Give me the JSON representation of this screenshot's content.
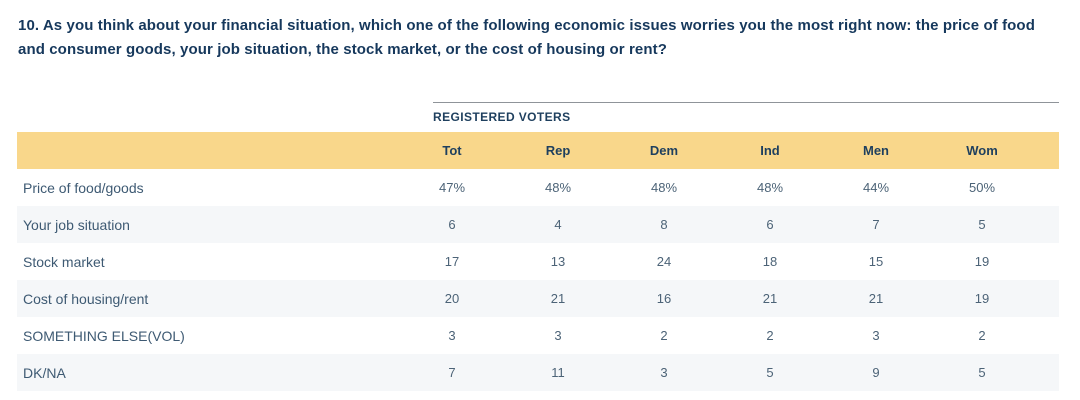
{
  "question": {
    "text": "10. As you think about your financial situation, which one of the following economic issues worries you the most right now: the price of food and consumer goods, your job situation, the stock market, or the cost of housing or rent?"
  },
  "table": {
    "group_label": "REGISTERED VOTERS",
    "columns": [
      "Tot",
      "Rep",
      "Dem",
      "Ind",
      "Men",
      "Wom"
    ],
    "rows": [
      {
        "label": "Price of food/goods",
        "values": [
          "47%",
          "48%",
          "48%",
          "48%",
          "44%",
          "50%"
        ]
      },
      {
        "label": "Your job situation",
        "values": [
          "6",
          "4",
          "8",
          "6",
          "7",
          "5"
        ]
      },
      {
        "label": "Stock market",
        "values": [
          "17",
          "13",
          "24",
          "18",
          "15",
          "19"
        ]
      },
      {
        "label": "Cost of housing/rent",
        "values": [
          "20",
          "21",
          "16",
          "21",
          "21",
          "19"
        ]
      },
      {
        "label": "SOMETHING ELSE(VOL)",
        "values": [
          "3",
          "3",
          "2",
          "2",
          "3",
          "2"
        ]
      },
      {
        "label": "DK/NA",
        "values": [
          "7",
          "11",
          "3",
          "5",
          "9",
          "5"
        ]
      }
    ]
  },
  "colors": {
    "header_band": "#F9D78B",
    "row_stripe": "#F5F7F9",
    "question_text": "#16385C",
    "header_text": "#1E3F5E",
    "row_label_text": "#3E5A73",
    "cell_text": "#4C6377",
    "rule_line": "#8F9499",
    "background": "#FFFFFF"
  },
  "chart_data": {
    "type": "table",
    "title": "10. As you think about your financial situation, which one of the following economic issues worries you the most right now: the price of food and consumer goods, your job situation, the stock market, or the cost of housing or rent?",
    "group_header": "REGISTERED VOTERS",
    "columns": [
      "Tot",
      "Rep",
      "Dem",
      "Ind",
      "Men",
      "Wom"
    ],
    "categories": [
      "Price of food/goods",
      "Your job situation",
      "Stock market",
      "Cost of housing/rent",
      "SOMETHING ELSE(VOL)",
      "DK/NA"
    ],
    "series": [
      {
        "name": "Tot",
        "values": [
          47,
          6,
          17,
          20,
          3,
          7
        ]
      },
      {
        "name": "Rep",
        "values": [
          48,
          4,
          13,
          21,
          3,
          11
        ]
      },
      {
        "name": "Dem",
        "values": [
          48,
          8,
          24,
          16,
          2,
          3
        ]
      },
      {
        "name": "Ind",
        "values": [
          48,
          6,
          18,
          21,
          2,
          5
        ]
      },
      {
        "name": "Men",
        "values": [
          44,
          7,
          15,
          21,
          3,
          9
        ]
      },
      {
        "name": "Wom",
        "values": [
          50,
          5,
          19,
          19,
          2,
          5
        ]
      }
    ],
    "units": "percent",
    "layout": {
      "zebra_striping": true,
      "header_band_color": "#F9D78B",
      "values_alignment": "center"
    }
  }
}
